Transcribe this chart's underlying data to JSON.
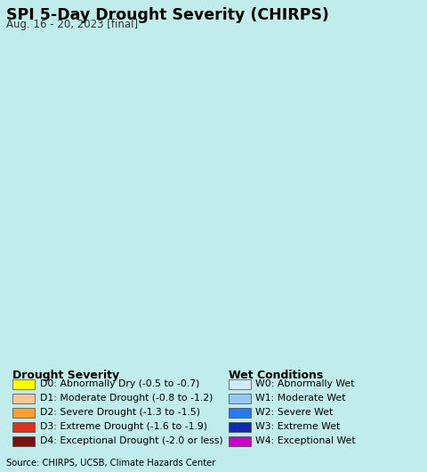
{
  "title": "SPI 5-Day Drought Severity (CHIRPS)",
  "subtitle": "Aug. 16 - 20, 2023 [final]",
  "source_text": "Source: CHIRPS, UCSB, Climate Hazards Center",
  "bg_color": "#c0ecec",
  "legend_bg": "#ffffff",
  "source_bg": "#cccccc",
  "drought_labels": [
    "D0: Abnormally Dry (-0.5 to -0.7)",
    "D1: Moderate Drought (-0.8 to -1.2)",
    "D2: Severe Drought (-1.3 to -1.5)",
    "D3: Extreme Drought (-1.6 to -1.9)",
    "D4: Exceptional Drought (-2.0 or less)"
  ],
  "drought_colors": [
    "#ffff00",
    "#f5c896",
    "#f5a030",
    "#e03020",
    "#7b1010"
  ],
  "wet_labels": [
    "W0: Abnormally Wet",
    "W1: Moderate Wet",
    "W2: Severe Wet",
    "W3: Extreme Wet",
    "W4: Exceptional Wet"
  ],
  "wet_colors": [
    "#d0eaff",
    "#96c8f5",
    "#2878f0",
    "#1428b4",
    "#c800c8"
  ],
  "drought_header": "Drought Severity",
  "wet_header": "Wet Conditions",
  "title_fontsize": 12.5,
  "subtitle_fontsize": 8.5,
  "legend_header_fontsize": 9,
  "legend_fontsize": 7.8,
  "source_fontsize": 7.2,
  "map_xlim": [
    79.0,
    83.5
  ],
  "map_ylim": [
    5.5,
    10.4
  ],
  "india_color": "#e8e0d0",
  "ocean_color": "#c0ecec",
  "border_color": "#000000",
  "district_color": "#8080a0"
}
